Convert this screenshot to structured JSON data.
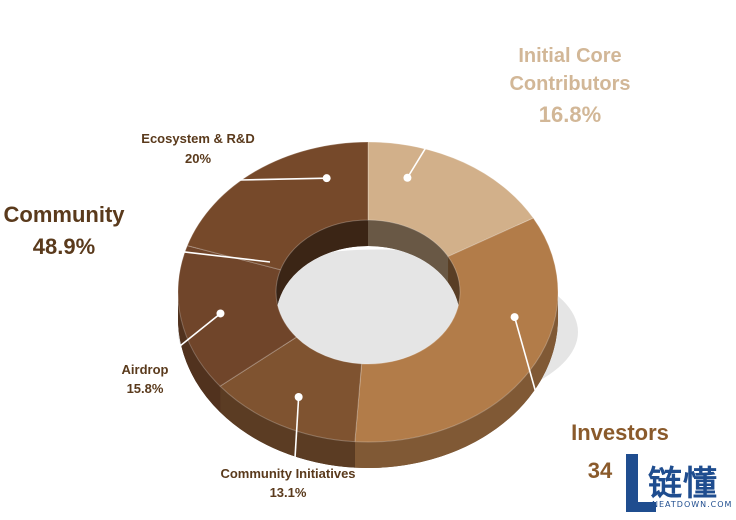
{
  "chart_data": {
    "type": "pie",
    "style": "3d-donut",
    "slices": [
      {
        "key": "icc",
        "label_lines": [
          "Initial Core",
          "Contributors"
        ],
        "value_text": "16.8%",
        "value": 16.8,
        "color": "#d2b08a"
      },
      {
        "key": "investors",
        "label_lines": [
          "Investors"
        ],
        "value_text": "34",
        "value": 34.3,
        "color": "#b27c49"
      },
      {
        "key": "ci",
        "label_lines": [
          "Community Initiatives"
        ],
        "value_text": "13.1%",
        "value": 13.1,
        "color": "#7f5330"
      },
      {
        "key": "airdrop",
        "label_lines": [
          "Airdrop"
        ],
        "value_text": "15.8%",
        "value": 15.8,
        "color": "#70452a"
      },
      {
        "key": "eco",
        "label_lines": [
          "Ecosystem & R&D"
        ],
        "value_text": "20%",
        "value": 20.0,
        "color": "#76492a"
      }
    ],
    "group": {
      "label": "Community",
      "value_text": "48.9%",
      "value": 48.9
    }
  },
  "watermark": {
    "cn": "链懂",
    "site": "NEATDOWN.COM"
  }
}
